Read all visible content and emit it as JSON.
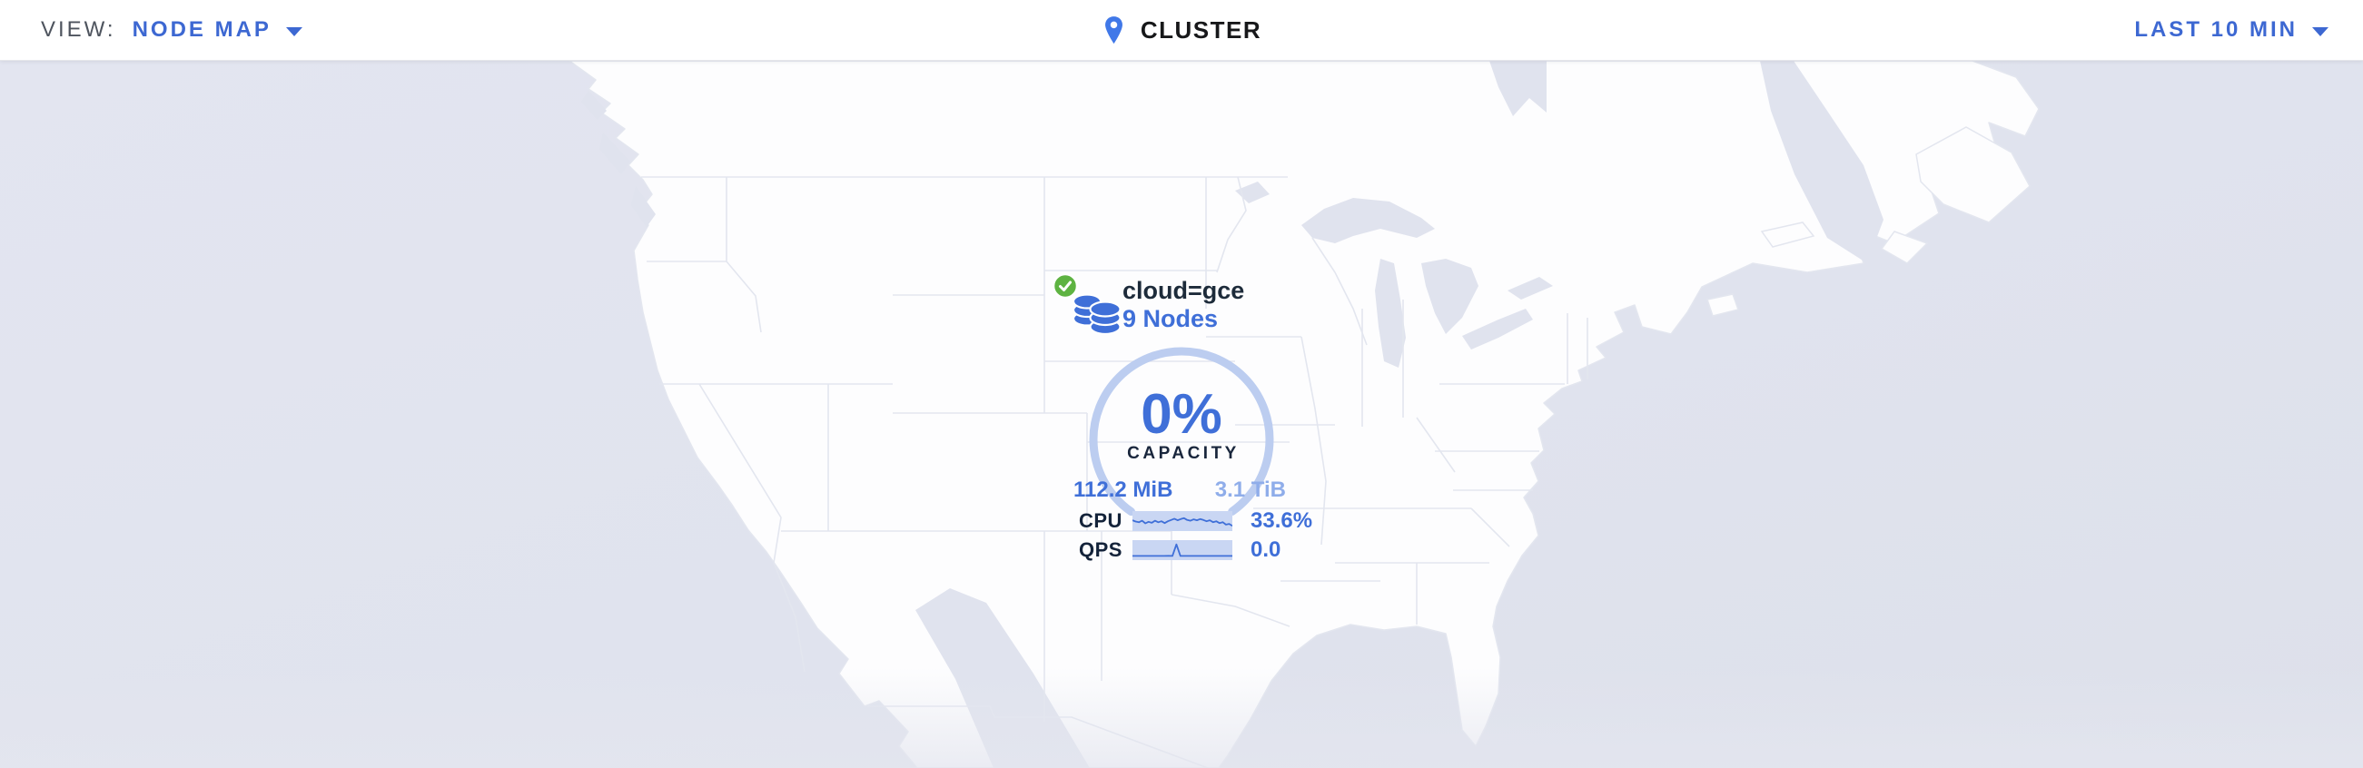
{
  "header": {
    "view_label": "VIEW:",
    "view_value": "NODE MAP",
    "breadcrumb": "CLUSTER",
    "time_range": "LAST 10 MIN"
  },
  "map": {
    "locality": {
      "label": "cloud=gce",
      "nodes": "9 Nodes",
      "capacity": {
        "percent": "0%",
        "label": "CAPACITY",
        "used": "112.2 MiB",
        "total": "3.1 TiB"
      },
      "metrics": [
        {
          "label": "CPU",
          "value": "33.6%",
          "sparkline": [
            0.58,
            0.5,
            0.45,
            0.55,
            0.38,
            0.48,
            0.42,
            0.55,
            0.45,
            0.52,
            0.4,
            0.52,
            0.6,
            0.68,
            0.58,
            0.66,
            0.72,
            0.6,
            0.55,
            0.64,
            0.58,
            0.66,
            0.6,
            0.52,
            0.58,
            0.46,
            0.52,
            0.4,
            0.46,
            0.3,
            0.35,
            0.22
          ]
        },
        {
          "label": "QPS",
          "value": "0.0",
          "sparkline": [
            0.15,
            0.15,
            0.15,
            0.15,
            0.15,
            0.15,
            0.15,
            0.15,
            0.15,
            0.16,
            0.15,
            0.9,
            0.15,
            0.15,
            0.15,
            0.15,
            0.15,
            0.15,
            0.15,
            0.15,
            0.15,
            0.15,
            0.15,
            0.15,
            0.15,
            0.15
          ]
        }
      ]
    }
  },
  "icons": {
    "view_dropdown": "chevron-down",
    "time_dropdown": "chevron-down",
    "breadcrumb": "map-pin",
    "locality_status": "check-circle",
    "locality_type": "database-stack"
  },
  "colors": {
    "accent": "#3d68d2",
    "value_blue": "#3f6fd8",
    "muted_blue": "#8fadea",
    "arc_blue": "#bccdf0",
    "spark_bg": "#c9d6f3",
    "green": "#5eb342",
    "dark": "#1d2b3a",
    "header_text": "#4e545e",
    "title_dark": "#17181a",
    "ocean": "#e0e3ee",
    "land": "#fdfdfe",
    "border_line": "#e3e6ef",
    "pin_blue": "#4078e8"
  }
}
